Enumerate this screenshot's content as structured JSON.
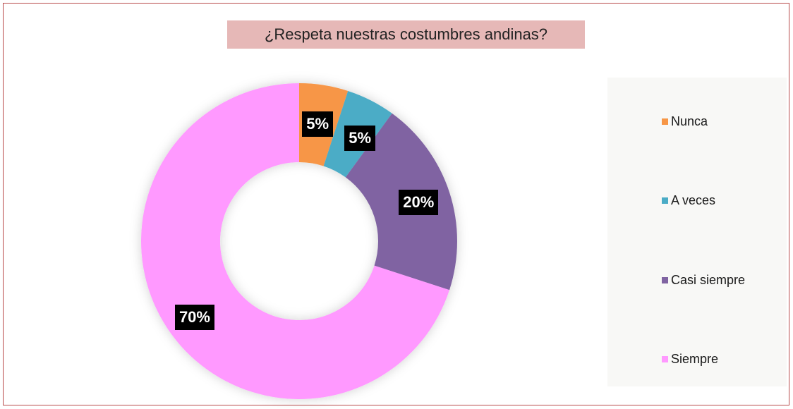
{
  "chart_data": {
    "type": "pie",
    "donut": true,
    "title": "¿Respeta nuestras costumbres andinas?",
    "title_background": "#e6b8b7",
    "legend_position": "right",
    "categories": [
      "Nunca",
      "A veces",
      "Casi siempre",
      "Siempre"
    ],
    "values": [
      5,
      5,
      20,
      70
    ],
    "data_labels": [
      "5%",
      "5%",
      "20%",
      "70%"
    ],
    "colors": [
      "#f79646",
      "#4bacc6",
      "#8064a2",
      "#ff99ff"
    ]
  }
}
